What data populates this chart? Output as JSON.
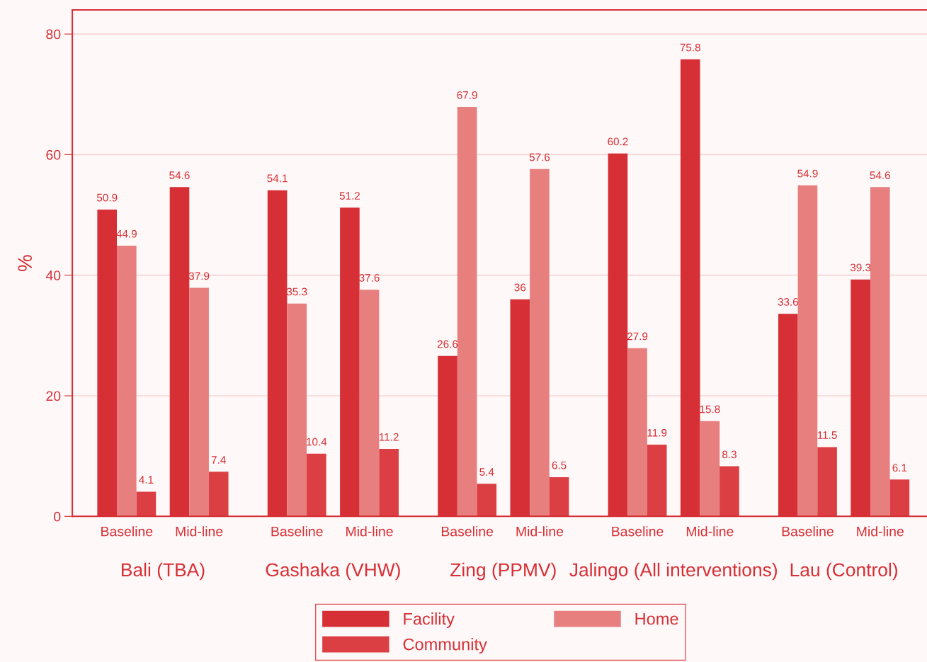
{
  "chart_data": {
    "type": "bar",
    "ylabel": "%",
    "categories": [
      "Baseline",
      "Mid-line",
      "Baseline",
      "Mid-line",
      "Baseline",
      "Mid-line",
      "Baseline",
      "Mid-line",
      "Baseline",
      "Mid-line"
    ],
    "series": [
      {
        "name": "Facility",
        "color": "#d62f35",
        "values": [
          50.9,
          54.6,
          54.1,
          51.2,
          26.6,
          36,
          60.2,
          75.8,
          33.6,
          39.3
        ]
      },
      {
        "name": "Home",
        "color": "#e77f7f",
        "values": [
          44.9,
          37.9,
          35.3,
          37.6,
          67.9,
          57.6,
          27.9,
          15.8,
          54.9,
          54.6
        ]
      },
      {
        "name": "Community",
        "color": "#db3f44",
        "values": [
          4.1,
          7.4,
          10.4,
          11.2,
          5.4,
          6.5,
          11.9,
          8.3,
          11.5,
          6.1
        ]
      }
    ],
    "annotations": [
      "Bali (TBA)",
      "Gashaka (VHW)",
      "Zing (PPMV)",
      "Jalingo (All interventions)",
      "Lau (Control)"
    ],
    "ylim": [
      0,
      84
    ],
    "yticks": [
      0,
      20,
      40,
      60,
      80
    ],
    "grid": "y",
    "legend": "bottom",
    "data_labels": true
  }
}
